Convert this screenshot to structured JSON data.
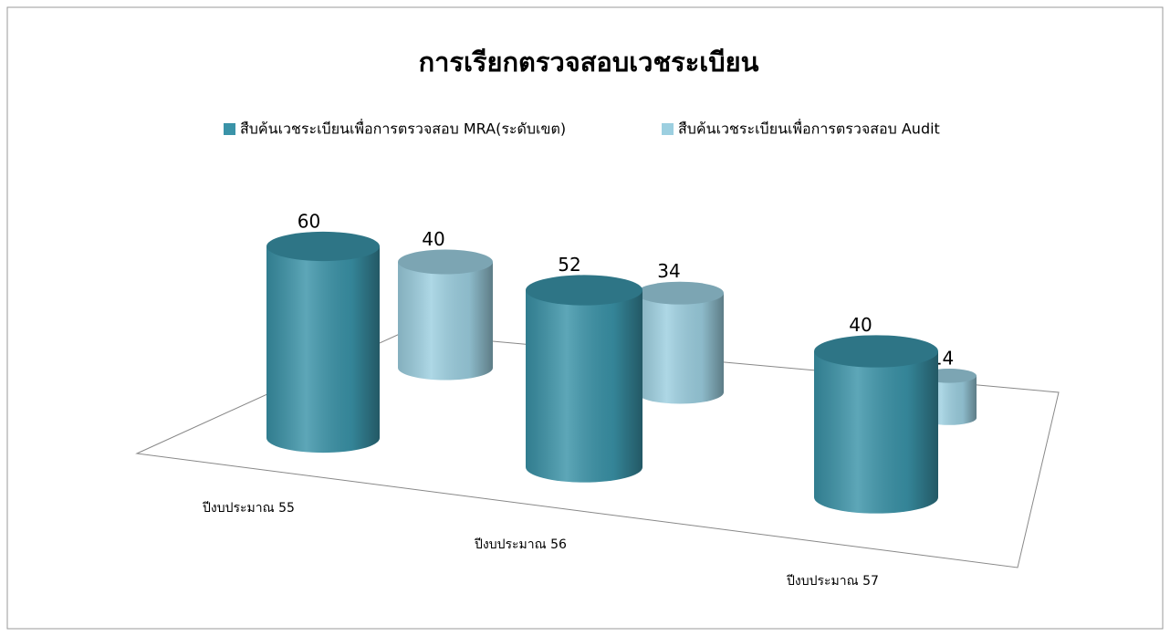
{
  "chart_data": {
    "type": "bar3d",
    "title": "การเรียกตรวจสอบเวชระเบียน",
    "categories": [
      "ปีงบประมาณ 55",
      "ปีงบประมาณ 56",
      "ปีงบประมาณ 57"
    ],
    "series": [
      {
        "name": "สืบค้นเวชระเบียนเพื่อการตรวจสอบ MRA(ระดับเขต)",
        "color": "#3a93a8",
        "values": [
          60,
          52,
          40
        ]
      },
      {
        "name": "สืบค้นเวชระเบียนเพื่อการตรวจสอบ Audit",
        "color": "#9ccfe0",
        "values": [
          40,
          34,
          14
        ]
      }
    ],
    "legend": "top"
  }
}
